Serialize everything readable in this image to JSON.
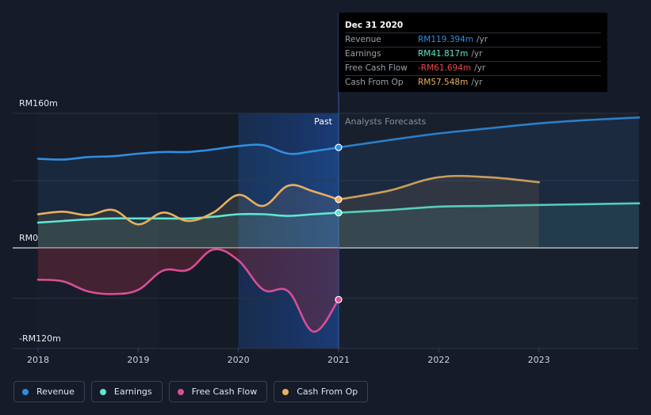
{
  "chart_data": {
    "type": "line",
    "title": "",
    "currency_prefix": "RM",
    "y_axis": {
      "min": -120,
      "max": 160,
      "unit": "m",
      "labels": [
        {
          "value": 160,
          "text": "RM160m"
        },
        {
          "value": 0,
          "text": "RM0"
        },
        {
          "value": -120,
          "text": "-RM120m"
        }
      ]
    },
    "x_axis": {
      "min": 2018.0,
      "max": 2024.0,
      "ticks": [
        {
          "value": 2018,
          "text": "2018"
        },
        {
          "value": 2019,
          "text": "2019"
        },
        {
          "value": 2020,
          "text": "2020"
        },
        {
          "value": 2021,
          "text": "2021"
        },
        {
          "value": 2022,
          "text": "2022"
        },
        {
          "value": 2023,
          "text": "2023"
        }
      ]
    },
    "divider": {
      "x": 2021.0,
      "past_label": "Past",
      "forecast_label": "Analysts Forecasts",
      "highlight_start": 2020.0
    },
    "series": [
      {
        "name": "Revenue",
        "color": "#2f8ee0",
        "points": [
          [
            2018.0,
            106
          ],
          [
            2018.25,
            105
          ],
          [
            2018.5,
            108
          ],
          [
            2018.75,
            109
          ],
          [
            2019.0,
            112
          ],
          [
            2019.25,
            114
          ],
          [
            2019.5,
            114
          ],
          [
            2019.75,
            117
          ],
          [
            2020.0,
            121
          ],
          [
            2020.25,
            122
          ],
          [
            2020.5,
            112
          ],
          [
            2020.75,
            115
          ],
          [
            2021.0,
            119.4
          ]
        ],
        "forecast": [
          [
            2021.0,
            119.4
          ],
          [
            2021.5,
            128
          ],
          [
            2022.0,
            136
          ],
          [
            2022.5,
            142
          ],
          [
            2023.0,
            148
          ],
          [
            2023.5,
            152
          ],
          [
            2024.0,
            155
          ]
        ]
      },
      {
        "name": "Earnings",
        "color": "#5ee6d0",
        "points": [
          [
            2018.0,
            30
          ],
          [
            2018.25,
            32
          ],
          [
            2018.5,
            34
          ],
          [
            2018.75,
            35
          ],
          [
            2019.0,
            35
          ],
          [
            2019.25,
            35
          ],
          [
            2019.5,
            35
          ],
          [
            2019.75,
            37
          ],
          [
            2020.0,
            40
          ],
          [
            2020.25,
            40
          ],
          [
            2020.5,
            38
          ],
          [
            2020.75,
            40
          ],
          [
            2021.0,
            41.8
          ]
        ],
        "forecast": [
          [
            2021.0,
            41.8
          ],
          [
            2021.5,
            45
          ],
          [
            2022.0,
            49
          ],
          [
            2022.5,
            50
          ],
          [
            2023.0,
            51
          ],
          [
            2023.5,
            52
          ],
          [
            2024.0,
            53
          ]
        ]
      },
      {
        "name": "Free Cash Flow",
        "color": "#d94d96",
        "points": [
          [
            2018.0,
            -38
          ],
          [
            2018.25,
            -40
          ],
          [
            2018.5,
            -52
          ],
          [
            2018.75,
            -55
          ],
          [
            2019.0,
            -50
          ],
          [
            2019.25,
            -27
          ],
          [
            2019.5,
            -26
          ],
          [
            2019.75,
            -2
          ],
          [
            2020.0,
            -15
          ],
          [
            2020.25,
            -50
          ],
          [
            2020.5,
            -52
          ],
          [
            2020.75,
            -100
          ],
          [
            2021.0,
            -61.7
          ]
        ],
        "forecast": []
      },
      {
        "name": "Cash From Op",
        "color": "#e8b060",
        "points": [
          [
            2018.0,
            40
          ],
          [
            2018.25,
            43
          ],
          [
            2018.5,
            39
          ],
          [
            2018.75,
            45
          ],
          [
            2019.0,
            28
          ],
          [
            2019.25,
            42
          ],
          [
            2019.5,
            32
          ],
          [
            2019.75,
            42
          ],
          [
            2020.0,
            63
          ],
          [
            2020.25,
            50
          ],
          [
            2020.5,
            74
          ],
          [
            2020.75,
            67
          ],
          [
            2021.0,
            57.5
          ]
        ],
        "forecast": [
          [
            2021.0,
            57.5
          ],
          [
            2021.5,
            68
          ],
          [
            2022.0,
            84
          ],
          [
            2022.5,
            84
          ],
          [
            2023.0,
            78
          ]
        ]
      }
    ],
    "marker_x": 2021.0
  },
  "tooltip": {
    "date": "Dec 31 2020",
    "rows": [
      {
        "name": "Revenue",
        "value": "RM119.394m",
        "unit": "/yr",
        "color": "#2f8ee0"
      },
      {
        "name": "Earnings",
        "value": "RM41.817m",
        "unit": "/yr",
        "color": "#5ee6d0"
      },
      {
        "name": "Free Cash Flow",
        "value": "-RM61.694m",
        "unit": "/yr",
        "color": "#e8484c"
      },
      {
        "name": "Cash From Op",
        "value": "RM57.548m",
        "unit": "/yr",
        "color": "#e8b060"
      }
    ]
  },
  "legend": {
    "items": [
      {
        "label": "Revenue",
        "color": "#2f8ee0"
      },
      {
        "label": "Earnings",
        "color": "#5ee6d0"
      },
      {
        "label": "Free Cash Flow",
        "color": "#d94d96"
      },
      {
        "label": "Cash From Op",
        "color": "#e8b060"
      }
    ]
  }
}
